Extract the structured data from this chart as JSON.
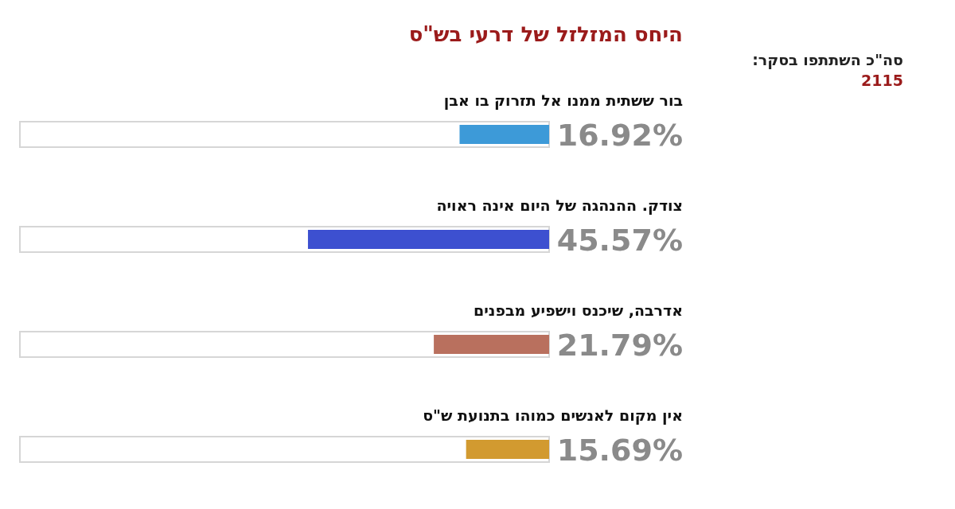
{
  "chart_data": {
    "type": "bar",
    "orientation": "horizontal",
    "title": "היחס המזלזל של דרעי בש\"ס",
    "categories": [
      "בור ששתית ממנו אל תזרוק בו אבן",
      "צודק. ההנהגה של היום אינה ראויה",
      "אדרבה, שיכנס וישפיע מבפנים",
      "אין מקום לאנשים כמוהו בתנועת ש\"ס"
    ],
    "values": [
      16.92,
      45.57,
      21.79,
      15.69
    ],
    "colors": [
      "#3d9ad8",
      "#3d50d0",
      "#b9705e",
      "#d29a30"
    ],
    "value_labels": [
      "16.92%",
      "45.57%",
      "21.79%",
      "15.69%"
    ],
    "xlim": [
      100,
      0
    ],
    "annotations": [
      "סה\"כ השתתפו בסקר:",
      "2115"
    ]
  }
}
